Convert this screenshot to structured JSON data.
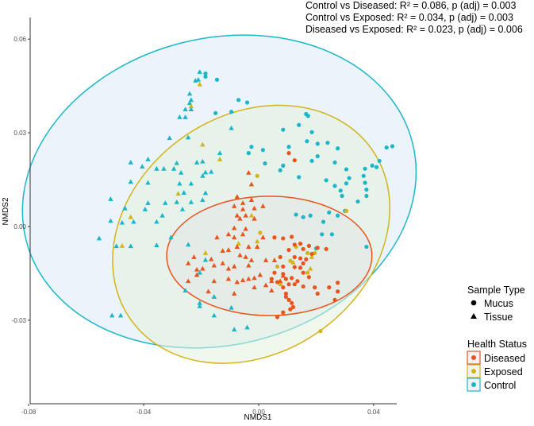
{
  "chart_data": {
    "type": "scatter",
    "xlabel": "NMDS1",
    "ylabel": "NMDS2",
    "xlim": [
      -0.08,
      0.05
    ],
    "ylim": [
      -0.057,
      0.064
    ],
    "x_ticks": [
      -0.08,
      -0.04,
      0.0,
      0.04
    ],
    "x_tick_labels": [
      "-0.08",
      "-0.04",
      "0.00",
      "0.04"
    ],
    "y_ticks": [
      -0.03,
      0.0,
      0.03,
      0.06
    ],
    "y_tick_labels": [
      "-0.03",
      "0.00",
      "0.03",
      "0.06"
    ],
    "annotations": [
      "Control vs Diseased: R² = 0.086, p (adj) = 0.003",
      "Control vs Exposed: R² = 0.034, p (adj) = 0.003",
      "Diseased vs Exposed: R² = 0.023, p (adj) = 0.006"
    ],
    "legend_shape": {
      "title": "Sample Type",
      "items": [
        {
          "label": "Mucus",
          "shape": "circle"
        },
        {
          "label": "Tissue",
          "shape": "triangle"
        }
      ]
    },
    "legend_color": {
      "title": "Health Status",
      "items": [
        {
          "label": "Diseased",
          "color": "#E8541E"
        },
        {
          "label": "Exposed",
          "color": "#D4B21A"
        },
        {
          "label": "Control",
          "color": "#1BB6C9"
        }
      ]
    },
    "ellipses": [
      {
        "group": "Control",
        "cx": -0.0137,
        "cy": 0.0112,
        "rx": 0.0693,
        "ry": 0.0491,
        "angle_deg": -14,
        "color": "#1BB6C9",
        "fill": "#DDEBF7"
      },
      {
        "group": "Exposed",
        "cx": -0.0026,
        "cy": -0.0025,
        "rx": 0.0513,
        "ry": 0.038,
        "angle_deg": -35,
        "color": "#D4B21A",
        "fill": "#E3F0DC"
      },
      {
        "group": "Diseased",
        "cx": 0.0037,
        "cy": -0.0094,
        "rx": 0.0357,
        "ry": 0.0191,
        "angle_deg": 0,
        "color": "#E8541E",
        "fill": "#E4E8E6"
      }
    ],
    "series": [
      {
        "name": "Control",
        "shape": "circle",
        "color": "#1BB6C9",
        "points": [
          [
            -0.0185,
            0.048
          ],
          [
            -0.0185,
            0.049
          ],
          [
            -0.0145,
            0.047
          ],
          [
            -0.007,
            0.0405
          ],
          [
            -0.004,
            0.0397
          ],
          [
            -0.0095,
            0.0367
          ],
          [
            -0.015,
            0.0363
          ],
          [
            0.0165,
            0.036
          ],
          [
            0.0172,
            0.0354
          ],
          [
            0.014,
            0.0325
          ],
          [
            0.0085,
            0.031
          ],
          [
            0.0185,
            0.0302
          ],
          [
            0.0168,
            0.0273
          ],
          [
            0.0205,
            0.0265
          ],
          [
            0.024,
            0.0268
          ],
          [
            0.0275,
            0.025
          ],
          [
            -0.0025,
            0.0255
          ],
          [
            0.0015,
            0.0245
          ],
          [
            0.0105,
            0.0255
          ],
          [
            0.0445,
            0.0253
          ],
          [
            0.0465,
            0.0257
          ],
          [
            -0.0035,
            0.0235
          ],
          [
            0.0022,
            0.0202
          ],
          [
            0.0085,
            0.0195
          ],
          [
            0.0185,
            0.021
          ],
          [
            0.0205,
            0.0225
          ],
          [
            0.0265,
            0.0205
          ],
          [
            0.0395,
            0.0195
          ],
          [
            0.042,
            0.021
          ],
          [
            0.0075,
            0.018
          ],
          [
            0.014,
            0.0158
          ],
          [
            0.0235,
            0.0148
          ],
          [
            0.0305,
            0.0183
          ],
          [
            0.037,
            0.0185
          ],
          [
            0.041,
            0.019
          ],
          [
            0.0315,
            0.0155
          ],
          [
            0.0365,
            0.0162
          ],
          [
            0.037,
            0.014
          ],
          [
            0.0375,
            0.0118
          ],
          [
            0.0305,
            0.0138
          ],
          [
            0.0265,
            0.013
          ],
          [
            0.0285,
            0.0115
          ],
          [
            0.029,
            0.0098
          ],
          [
            0.0375,
            0.0098
          ],
          [
            0.0345,
            0.008
          ],
          [
            0.0245,
            0.0045
          ],
          [
            0.0275,
            0.0035
          ],
          [
            0.03,
            0.005
          ],
          [
            0.013,
            0.0038
          ],
          [
            0.0155,
            0.003
          ],
          [
            0.018,
            0.0035
          ],
          [
            0.0225,
            0.0015
          ],
          [
            0.022,
            -0.0025
          ],
          [
            0.0255,
            -0.0025
          ],
          [
            0.0375,
            -0.0065
          ],
          [
            0.02,
            -0.007
          ]
        ]
      },
      {
        "name": "Control",
        "shape": "triangle",
        "color": "#1BB6C9",
        "points": [
          [
            -0.0205,
            0.0495
          ],
          [
            -0.021,
            0.047
          ],
          [
            -0.022,
            0.0467
          ],
          [
            -0.024,
            0.0425
          ],
          [
            -0.0235,
            0.0405
          ],
          [
            -0.024,
            0.0395
          ],
          [
            -0.0235,
            0.0375
          ],
          [
            -0.0255,
            0.0375
          ],
          [
            -0.0275,
            0.035
          ],
          [
            -0.0255,
            0.035
          ],
          [
            -0.0095,
            0.0315
          ],
          [
            -0.0245,
            0.0285
          ],
          [
            -0.031,
            0.0283
          ],
          [
            -0.0385,
            0.0215
          ],
          [
            -0.0135,
            0.0235
          ],
          [
            -0.0195,
            0.0208
          ],
          [
            -0.0215,
            0.0205
          ],
          [
            -0.0285,
            0.0203
          ],
          [
            -0.0295,
            0.0185
          ],
          [
            -0.033,
            0.0185
          ],
          [
            -0.0355,
            0.0185
          ],
          [
            -0.0405,
            0.0192
          ],
          [
            -0.0445,
            0.0205
          ],
          [
            -0.0165,
            0.0175
          ],
          [
            -0.0185,
            0.0173
          ],
          [
            -0.027,
            0.0172
          ],
          [
            -0.0195,
            0.0162
          ],
          [
            -0.0235,
            0.0137
          ],
          [
            -0.0275,
            0.0137
          ],
          [
            -0.026,
            0.0108
          ],
          [
            -0.0385,
            0.014
          ],
          [
            -0.0445,
            0.0143
          ],
          [
            -0.0185,
            0.0107
          ],
          [
            -0.0195,
            0.0085
          ],
          [
            -0.0515,
            0.0088
          ],
          [
            -0.0385,
            0.0075
          ],
          [
            -0.0325,
            0.0075
          ],
          [
            -0.0285,
            0.0078
          ],
          [
            -0.0235,
            0.0078
          ],
          [
            -0.0265,
            0.0055
          ],
          [
            -0.0395,
            0.0055
          ],
          [
            -0.0465,
            0.0058
          ],
          [
            -0.0335,
            0.0035
          ],
          [
            -0.0355,
            0.0015
          ],
          [
            -0.0435,
            0.0015
          ],
          [
            -0.0475,
            0.0012
          ],
          [
            -0.0515,
            0.0018
          ],
          [
            -0.0555,
            -0.0038
          ],
          [
            -0.0305,
            -0.0035
          ],
          [
            -0.0355,
            -0.006
          ],
          [
            -0.0445,
            -0.0063
          ],
          [
            -0.0495,
            -0.0063
          ],
          [
            -0.0245,
            -0.0058
          ],
          [
            -0.0185,
            -0.0107
          ],
          [
            -0.0205,
            -0.0148
          ],
          [
            -0.0255,
            -0.0205
          ],
          [
            -0.0155,
            -0.0225
          ],
          [
            -0.0205,
            -0.0245
          ],
          [
            -0.0095,
            -0.026
          ],
          [
            -0.0155,
            -0.0285
          ],
          [
            -0.0205,
            -0.0255
          ],
          [
            -0.048,
            -0.0285
          ],
          [
            -0.051,
            -0.0285
          ],
          [
            -0.0085,
            -0.033
          ],
          [
            -0.004,
            -0.0323
          ]
        ]
      },
      {
        "name": "Exposed",
        "shape": "circle",
        "color": "#D4B21A",
        "points": [
          [
            -0.0005,
            0.0162
          ],
          [
            0.0005,
            -0.002
          ],
          [
            0.013,
            -0.0065
          ],
          [
            0.017,
            -0.0085
          ],
          [
            0.0195,
            -0.0085
          ],
          [
            0.011,
            -0.011
          ],
          [
            0.017,
            -0.0148
          ],
          [
            0.0065,
            -0.0128
          ],
          [
            0.0075,
            -0.0185
          ],
          [
            0.0305,
            0.005
          ],
          [
            0.0215,
            -0.0335
          ]
        ]
      },
      {
        "name": "Exposed",
        "shape": "triangle",
        "color": "#D4B21A",
        "points": [
          [
            -0.0205,
            0.0455
          ],
          [
            -0.0235,
            0.0385
          ],
          [
            -0.0195,
            0.0262
          ],
          [
            -0.0135,
            0.0215
          ],
          [
            -0.028,
            0.0105
          ],
          [
            -0.0445,
            0.003
          ],
          [
            -0.0475,
            -0.0062
          ],
          [
            -0.0185,
            -0.0085
          ],
          [
            -0.007,
            -0.0055
          ],
          [
            -0.0005,
            -0.0048
          ],
          [
            -0.0025,
            0.0035
          ],
          [
            0.0185,
            -0.0098
          ],
          [
            0.018,
            -0.0135
          ],
          [
            0.012,
            -0.0115
          ]
        ]
      },
      {
        "name": "Diseased",
        "shape": "circle",
        "color": "#E8541E",
        "points": [
          [
            0.0105,
            0.0235
          ],
          [
            0.0125,
            0.0212
          ],
          [
            0.0055,
            -0.0035
          ],
          [
            0.0085,
            -0.0038
          ],
          [
            0.0115,
            -0.0033
          ],
          [
            0.0125,
            -0.0058
          ],
          [
            0.0105,
            -0.0075
          ],
          [
            0.0145,
            -0.0055
          ],
          [
            0.0155,
            -0.0072
          ],
          [
            0.0175,
            -0.0062
          ],
          [
            0.0205,
            -0.0068
          ],
          [
            0.0235,
            -0.0072
          ],
          [
            0.0075,
            -0.0098
          ],
          [
            0.0125,
            -0.0098
          ],
          [
            0.0145,
            -0.0102
          ],
          [
            0.0165,
            -0.0105
          ],
          [
            0.0085,
            -0.0128
          ],
          [
            0.0125,
            -0.013
          ],
          [
            0.0145,
            -0.0132
          ],
          [
            0.0155,
            -0.0148
          ],
          [
            0.0175,
            -0.0162
          ],
          [
            0.0095,
            -0.0168
          ],
          [
            0.0115,
            -0.0165
          ],
          [
            0.0135,
            -0.0175
          ],
          [
            0.0085,
            -0.0152
          ],
          [
            0.0055,
            -0.0148
          ],
          [
            0.0045,
            -0.0168
          ],
          [
            0.0065,
            -0.0178
          ],
          [
            0.0105,
            -0.0185
          ],
          [
            0.0085,
            -0.0195
          ],
          [
            0.0125,
            -0.0185
          ],
          [
            0.0155,
            -0.0192
          ],
          [
            0.0195,
            -0.0195
          ],
          [
            0.0205,
            -0.0215
          ],
          [
            0.0245,
            -0.0195
          ],
          [
            0.0275,
            -0.018
          ],
          [
            0.0275,
            -0.0208
          ],
          [
            0.0095,
            -0.0225
          ],
          [
            0.0105,
            -0.0235
          ],
          [
            0.0115,
            -0.0245
          ],
          [
            0.011,
            -0.0265
          ],
          [
            0.0265,
            -0.0235
          ],
          [
            0.0085,
            -0.0275
          ],
          [
            0.0065,
            -0.029
          ],
          [
            0.012,
            -0.0258
          ],
          [
            0.0095,
            -0.0215
          ],
          [
            0.0185,
            -0.0088
          ],
          [
            0.0155,
            -0.0118
          ]
        ]
      },
      {
        "name": "Diseased",
        "shape": "triangle",
        "color": "#E8541E",
        "points": [
          [
            -0.0035,
            0.0172
          ],
          [
            -0.0025,
            0.0135
          ],
          [
            -0.0075,
            0.0095
          ],
          [
            -0.0025,
            0.0085
          ],
          [
            0.0015,
            0.0065
          ],
          [
            -0.0055,
            0.0075
          ],
          [
            -0.0085,
            0.0065
          ],
          [
            -0.0055,
            0.0055
          ],
          [
            -0.0015,
            0.0058
          ],
          [
            -0.0015,
            0.0025
          ],
          [
            -0.0045,
            0.0035
          ],
          [
            -0.0075,
            0.0035
          ],
          [
            -0.0065,
            0.0025
          ],
          [
            -0.0085,
            -0.0005
          ],
          [
            -0.0045,
            -0.0008
          ],
          [
            -0.0055,
            -0.0025
          ],
          [
            -0.0085,
            -0.0035
          ],
          [
            -0.0105,
            -0.0025
          ],
          [
            -0.0145,
            -0.0035
          ],
          [
            0.0015,
            -0.0035
          ],
          [
            -0.0005,
            -0.0065
          ],
          [
            -0.0035,
            -0.0065
          ],
          [
            -0.0075,
            -0.0065
          ],
          [
            -0.0105,
            -0.0075
          ],
          [
            -0.0125,
            -0.0078
          ],
          [
            -0.0065,
            -0.0092
          ],
          [
            -0.0045,
            -0.0098
          ],
          [
            -0.0025,
            -0.0108
          ],
          [
            0.0025,
            -0.0108
          ],
          [
            0.0055,
            -0.0108
          ],
          [
            -0.0035,
            -0.0125
          ],
          [
            -0.0085,
            -0.0128
          ],
          [
            -0.0105,
            -0.0135
          ],
          [
            -0.0125,
            -0.0118
          ],
          [
            -0.0155,
            -0.0125
          ],
          [
            -0.0165,
            -0.0105
          ],
          [
            -0.0195,
            -0.0135
          ],
          [
            -0.0215,
            -0.0138
          ],
          [
            -0.0245,
            -0.0118
          ],
          [
            -0.0225,
            -0.0098
          ],
          [
            -0.0105,
            -0.0168
          ],
          [
            -0.0075,
            -0.0178
          ],
          [
            -0.0055,
            -0.0172
          ],
          [
            -0.0035,
            -0.0168
          ],
          [
            -0.0015,
            -0.0165
          ],
          [
            0.0045,
            -0.0175
          ],
          [
            0.0075,
            -0.0175
          ],
          [
            0.0085,
            -0.0158
          ],
          [
            -0.0015,
            -0.0195
          ],
          [
            0.0025,
            -0.0188
          ],
          [
            0.0045,
            -0.0205
          ],
          [
            -0.0175,
            -0.0208
          ],
          [
            -0.0155,
            -0.0175
          ],
          [
            -0.0245,
            -0.0175
          ],
          [
            -0.0215,
            -0.0155
          ],
          [
            -0.0085,
            -0.0215
          ],
          [
            0.0005,
            -0.0155
          ]
        ]
      }
    ]
  }
}
